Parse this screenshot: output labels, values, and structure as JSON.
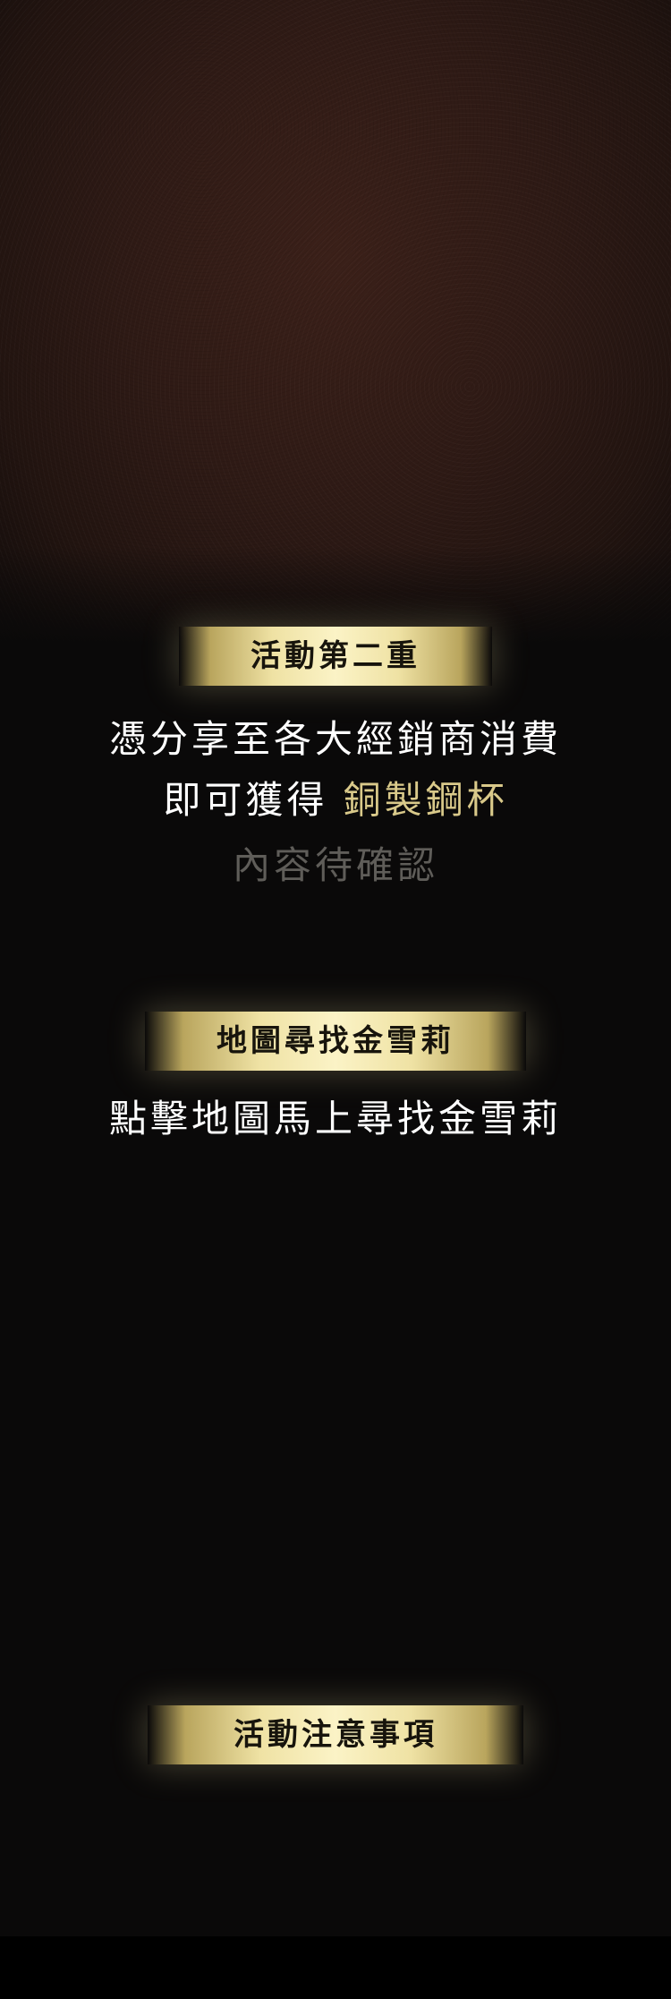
{
  "section1": {
    "title": "活動第二重",
    "line1": "憑分享至各大經銷商消費",
    "line2_prefix": "即可獲得 ",
    "line2_highlight": "銅製鋼杯",
    "line3": "內容待確認"
  },
  "section2": {
    "title": "地圖尋找金雪莉",
    "line1": "點擊地圖馬上尋找金雪莉"
  },
  "section3": {
    "title": "活動注意事項"
  },
  "colors": {
    "gold_banner": "#fbf3c6",
    "highlight_text": "#d9c98a",
    "muted_text": "#5f5d59",
    "background": "#0a0909"
  }
}
